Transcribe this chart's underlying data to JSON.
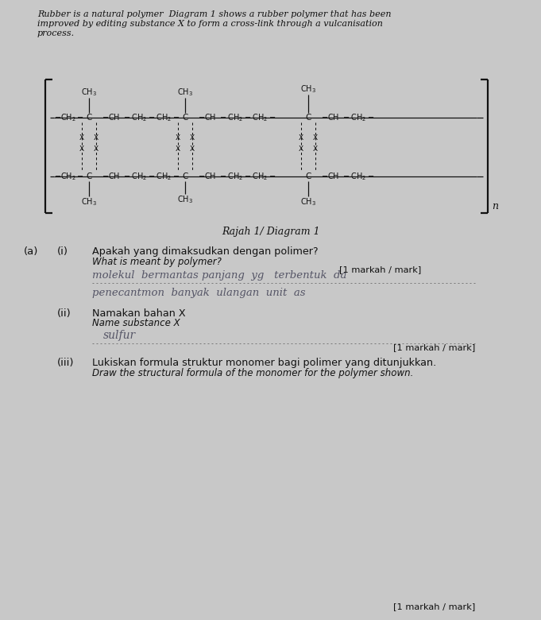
{
  "bg_color": "#c8c8c8",
  "header_line1": "Rubber is a natural polymer  Diagram 1 shows a rubber polymer that has been",
  "header_line2": "improved by editing substance X to form a cross-link through a vulcanisation",
  "header_line3": "process.",
  "diagram_label": "Rajah 1/ Diagram 1",
  "qa_label": "(a)",
  "qi_label": "(i)",
  "qi_text_malay": "Apakah yang dimaksudkan dengan polimer?",
  "qi_text_english": "What is meant by polymer?",
  "qi_answer1": "molekul  bermantas panjang  yg   terbentuk  da",
  "qi_answer2": "penecantmon  banyak  ulangan  unit  as",
  "qi_mark": "[1 markah / mark]",
  "qii_label": "(ii)",
  "qii_text_malay": "Namakan bahan X",
  "qii_text_english": "Name substance X",
  "qii_answer": "sulfur",
  "qii_mark": "[1 markah / mark]",
  "qiii_label": "(iii)",
  "qiii_text_malay": "Lukiskan formula struktur monomer bagi polimer yang ditunjukkan.",
  "qiii_text_english": "Draw the structural formula of the monomer for the polymer shown.",
  "qiii_mark": "[1 markah / mark]"
}
